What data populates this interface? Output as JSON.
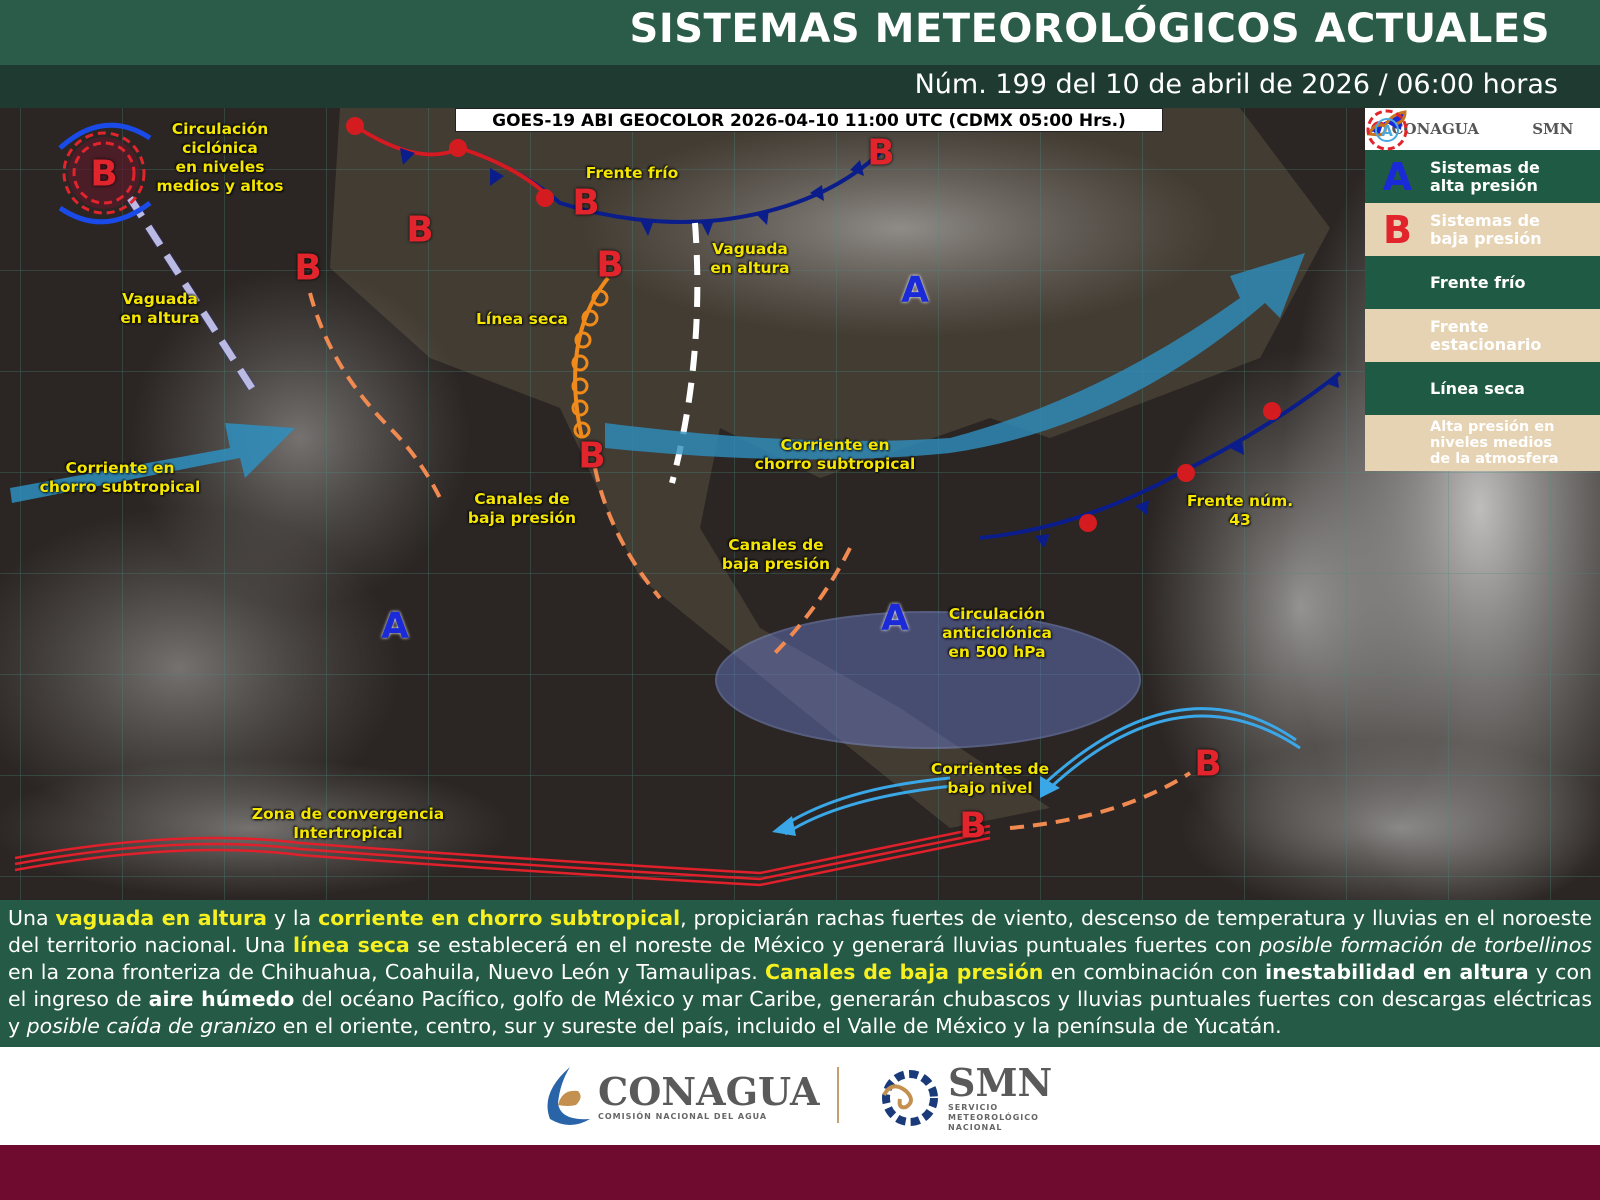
{
  "header": {
    "title": "SISTEMAS METEOROLÓGICOS ACTUALES",
    "subtitle": "Núm. 199 del 10 de abril de 2026 / 06:00 horas"
  },
  "map": {
    "satellite_caption": "GOES-19 ABI GEOCOLOR 2026-04-10 11:00 UTC (CDMX  05:00 Hrs.)",
    "labels": {
      "cyclonic": "Circulación\nciclónica\nen niveles\nmedios y altos",
      "cold_front": "Frente frío",
      "trough_east": "Vaguada\nen altura",
      "trough_west": "Vaguada\nen altura",
      "dry_line": "Línea seca",
      "jet_west": "Corriente en\nchorro subtropical",
      "jet_center": "Corriente en\nchorro subtropical",
      "low_channels_1": "Canales de\nbaja presión",
      "low_channels_2": "Canales de\nbaja presión",
      "anticyclonic": "Circulación\nanticiclónica\nen 500 hPa",
      "front_43": "Frente núm.\n43",
      "low_level": "Corrientes de\nbajo nivel",
      "itcz": "Zona de convergencia\nIntertropical"
    },
    "low_symbol": "B",
    "high_symbol": "A"
  },
  "legend": {
    "logo_left": "CONAGUA",
    "logo_right": "SMN",
    "items": [
      {
        "symbol": "A",
        "label": "Sistemas de\nalta presión"
      },
      {
        "symbol": "B",
        "label": "Sistemas de\nbaja presión"
      },
      {
        "symbol": "cold-front-icon",
        "label": "Frente frío"
      },
      {
        "symbol": "stationary-front-icon",
        "label": "Frente\nestacionario"
      },
      {
        "symbol": "dry-line-icon",
        "label": "Línea seca"
      },
      {
        "symbol": "A",
        "label": "Alta presión en\nniveles medios\nde la atmosfera"
      }
    ]
  },
  "description": [
    {
      "t": "Una ",
      "s": ""
    },
    {
      "t": "vaguada en altura",
      "s": "hl"
    },
    {
      "t": " y la ",
      "s": ""
    },
    {
      "t": "corriente en chorro subtropical",
      "s": "hl"
    },
    {
      "t": ", propiciarán rachas fuertes de viento, descenso de temperatura y lluvias en el noroeste del territorio nacional. Una ",
      "s": ""
    },
    {
      "t": "línea seca",
      "s": "hl"
    },
    {
      "t": " se establecerá en el noreste de México y generará lluvias puntuales fuertes con ",
      "s": ""
    },
    {
      "t": "posible formación de torbellinos",
      "s": "i"
    },
    {
      "t": " en la zona fronteriza de Chihuahua, Coahuila, Nuevo León y Tamaulipas. ",
      "s": ""
    },
    {
      "t": "Canales de baja presión",
      "s": "hl"
    },
    {
      "t": " en combinación con ",
      "s": ""
    },
    {
      "t": "inestabilidad en altura",
      "s": "b"
    },
    {
      "t": " y con el ingreso de ",
      "s": ""
    },
    {
      "t": "aire húmedo",
      "s": "b"
    },
    {
      "t": " del océano Pacífico, golfo de México y mar Caribe, generarán chubascos y lluvias puntuales fuertes con descargas eléctricas y ",
      "s": ""
    },
    {
      "t": "posible caída de granizo",
      "s": "i"
    },
    {
      "t": " en el oriente, centro, sur y sureste del país, incluido el Valle de México y la península de Yucatán.",
      "s": ""
    }
  ],
  "footer": {
    "conagua": "CONAGUA",
    "conagua_sub": "COMISIÓN NACIONAL DEL AGUA",
    "smn": "SMN",
    "smn_sub": "SERVICIO\nMETEOROLÓGICO\nNACIONAL"
  },
  "colors": {
    "header": "#2b5b49",
    "subheader": "#1e3a31",
    "text_panel": "#245a46",
    "highlight": "#f6f020",
    "low": "#e2242c",
    "high": "#1a2ad8",
    "bottom_bar": "#6e0b2e"
  }
}
